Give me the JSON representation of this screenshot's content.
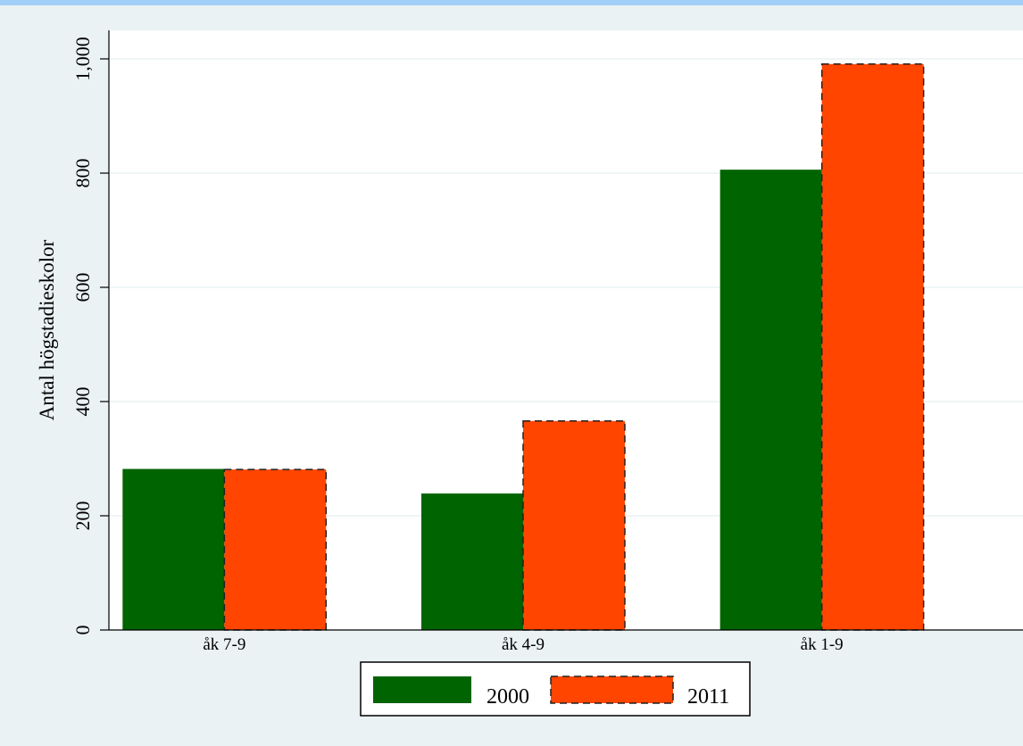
{
  "chart_data": {
    "type": "bar",
    "title": "",
    "xlabel": "",
    "ylabel": "Antal högstadieskolor",
    "categories": [
      "åk 7-9",
      "åk 4-9",
      "åk 1-9"
    ],
    "series": [
      {
        "name": "2000",
        "values": [
          282,
          239,
          806
        ],
        "color": "#006400"
      },
      {
        "name": "2011",
        "values": [
          281,
          366,
          991
        ],
        "color": "#ff4500"
      }
    ],
    "ylim": [
      0,
      1050
    ],
    "yticks": [
      0,
      200,
      400,
      600,
      800,
      1000
    ],
    "ytick_labels": [
      "0",
      "200",
      "400",
      "600",
      "800",
      "1,000"
    ],
    "grid": true,
    "legend_position": "bottom",
    "colors": {
      "plot_region": "#ffffff",
      "outer_region": "#eaf2f3",
      "gridline": "#eaf2f3",
      "banner_text": "#1e90ff"
    }
  }
}
